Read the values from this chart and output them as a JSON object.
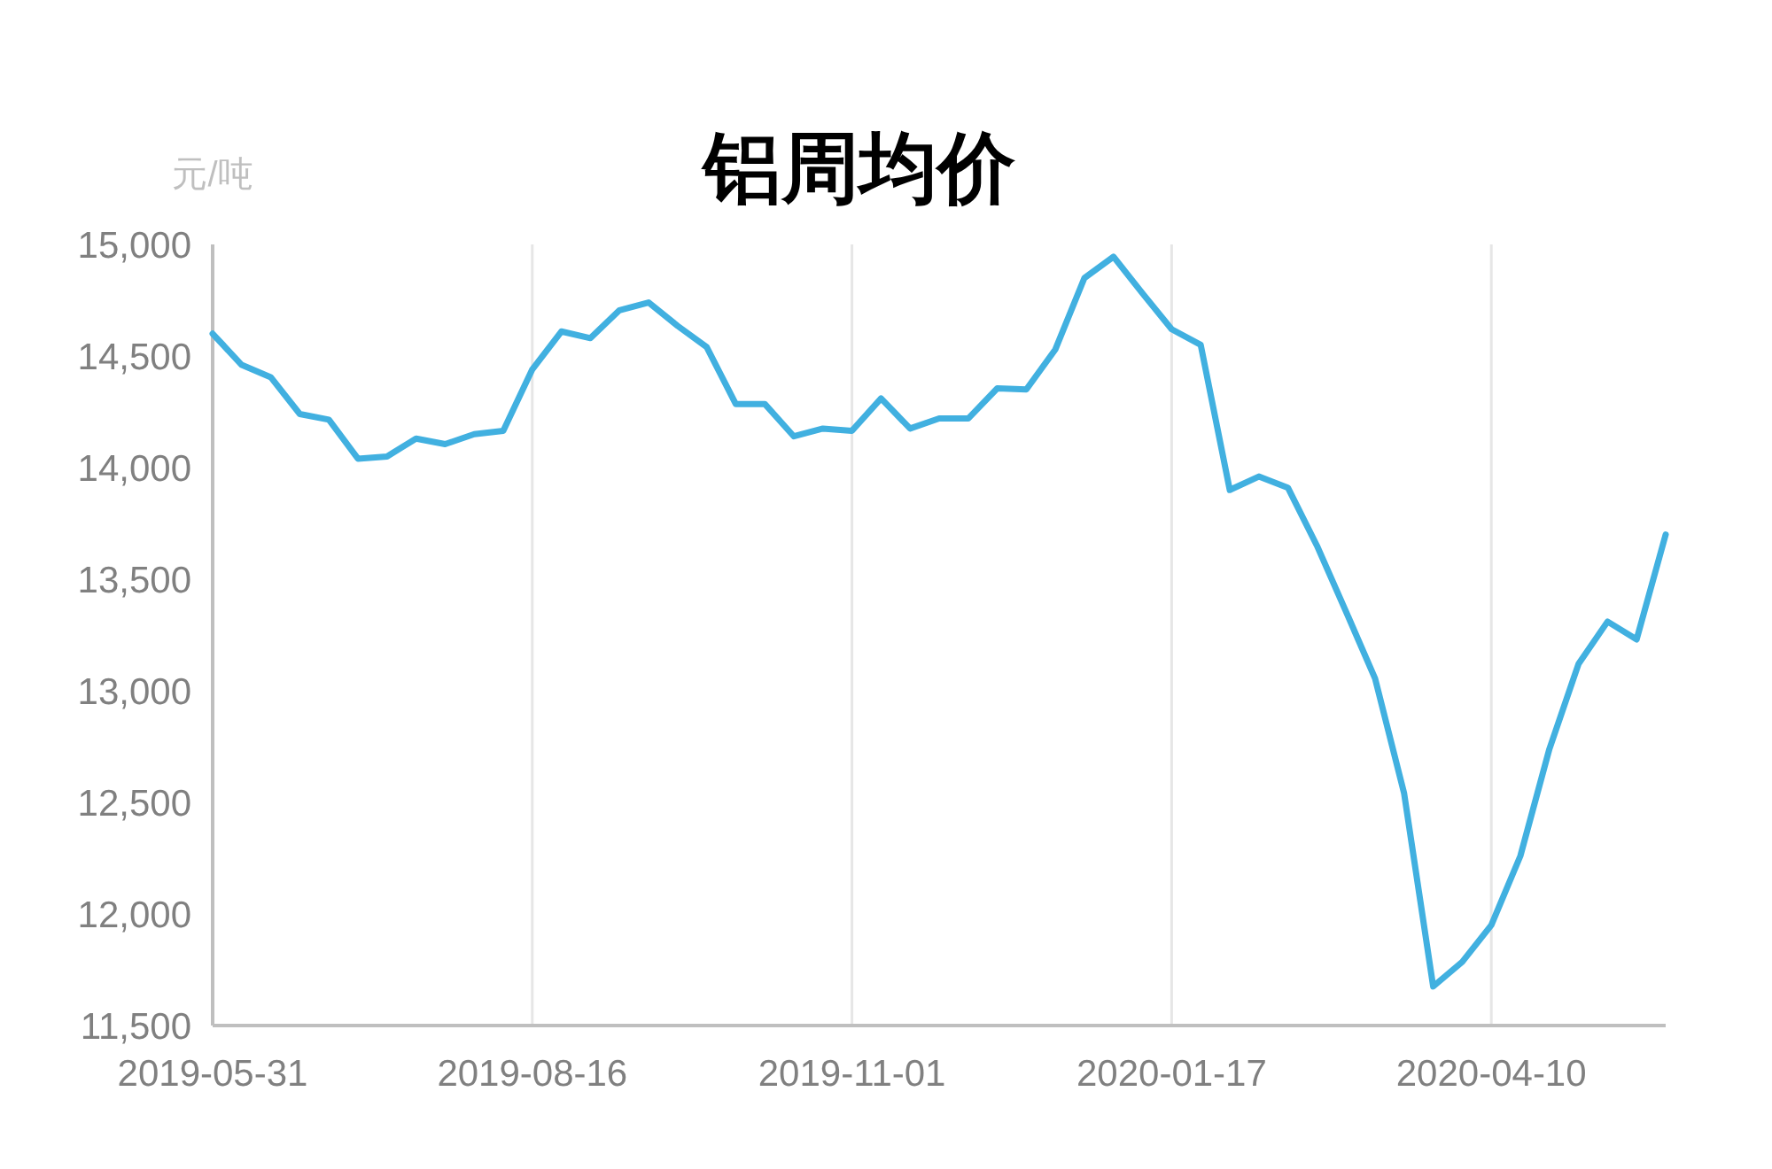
{
  "chart_data": {
    "type": "line",
    "title": "铝周均价",
    "ylabel": "元/吨",
    "categories": [
      "2019-05-31",
      null,
      null,
      null,
      null,
      null,
      null,
      null,
      null,
      null,
      null,
      "2019-08-16",
      null,
      null,
      null,
      null,
      null,
      null,
      null,
      null,
      null,
      null,
      "2019-11-01",
      null,
      null,
      null,
      null,
      null,
      null,
      null,
      null,
      null,
      null,
      "2020-01-17",
      null,
      null,
      null,
      null,
      null,
      null,
      null,
      null,
      null,
      null,
      "2020-04-10",
      null,
      null,
      null,
      null,
      null,
      null
    ],
    "series": [
      {
        "color": "#41b0e0",
        "values": [
          14600,
          14460,
          14405,
          14240,
          14215,
          14040,
          14050,
          14130,
          14105,
          14150,
          14165,
          14440,
          14610,
          14580,
          14705,
          14740,
          14635,
          14540,
          14285,
          14285,
          14140,
          14175,
          14165,
          14310,
          14175,
          14220,
          14220,
          14355,
          14350,
          14530,
          14850,
          14945,
          14780,
          14620,
          14550,
          13900,
          13960,
          13910,
          13650,
          13355,
          13055,
          12540,
          11675,
          11785,
          11950,
          12260,
          12740,
          13120,
          13310,
          13230,
          13700
        ]
      }
    ],
    "ylim": [
      11500,
      15000
    ],
    "yticks": [
      {
        "value": 11500,
        "label": "11,500"
      },
      {
        "value": 12000,
        "label": "12,000"
      },
      {
        "value": 12500,
        "label": "12,500"
      },
      {
        "value": 13000,
        "label": "13,000"
      },
      {
        "value": 13500,
        "label": "13,500"
      },
      {
        "value": 14000,
        "label": "14,000"
      },
      {
        "value": 14500,
        "label": "14,500"
      },
      {
        "value": 15000,
        "label": "15,000"
      }
    ],
    "grid": "x",
    "line_style": "solid"
  }
}
